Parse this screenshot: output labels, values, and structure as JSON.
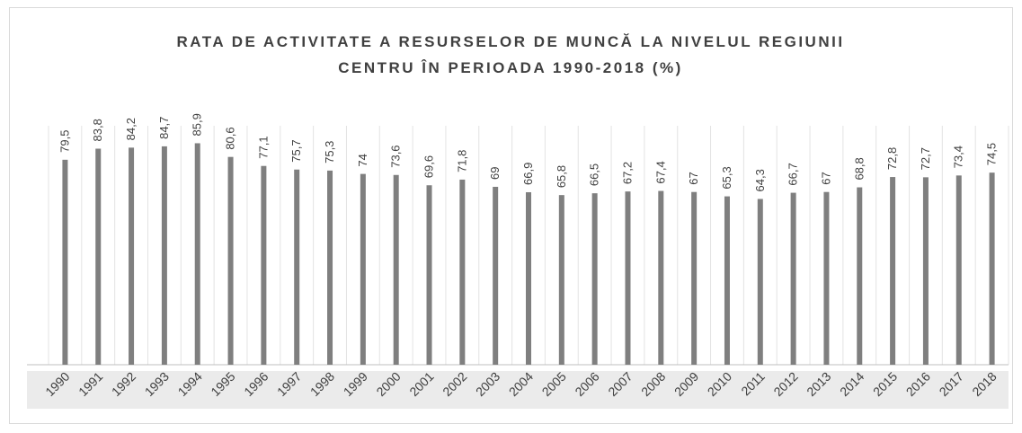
{
  "chart_data": {
    "type": "bar",
    "title": [
      "RATA DE ACTIVITATE A RESURSELOR DE MUNCĂ LA NIVELUL REGIUNII",
      "CENTRU ÎN PERIOADA 1990-2018 (%)"
    ],
    "categories": [
      "1990",
      "1991",
      "1992",
      "1993",
      "1994",
      "1995",
      "1996",
      "1997",
      "1998",
      "1999",
      "2000",
      "2001",
      "2002",
      "2003",
      "2004",
      "2005",
      "2006",
      "2007",
      "2008",
      "2009",
      "2010",
      "2011",
      "2012",
      "2013",
      "2014",
      "2015",
      "2016",
      "2017",
      "2018"
    ],
    "values": [
      79.5,
      83.8,
      84.2,
      84.7,
      85.9,
      80.6,
      77.1,
      75.7,
      75.3,
      74,
      73.6,
      69.6,
      71.8,
      69,
      66.9,
      65.8,
      66.5,
      67.2,
      67.4,
      67,
      65.3,
      64.3,
      66.7,
      67,
      68.8,
      72.8,
      72.7,
      73.4,
      74.5
    ],
    "value_labels": [
      "79,5",
      "83,8",
      "84,2",
      "84,7",
      "85,9",
      "80,6",
      "77,1",
      "75,7",
      "75,3",
      "74",
      "73,6",
      "69,6",
      "71,8",
      "69",
      "66,9",
      "65,8",
      "66,5",
      "67,2",
      "67,4",
      "67",
      "65,3",
      "64,3",
      "66,7",
      "67",
      "68,8",
      "72,8",
      "72,7",
      "73,4",
      "74,5"
    ],
    "color": "#7f7f7f",
    "ylim": [
      0,
      100
    ]
  }
}
